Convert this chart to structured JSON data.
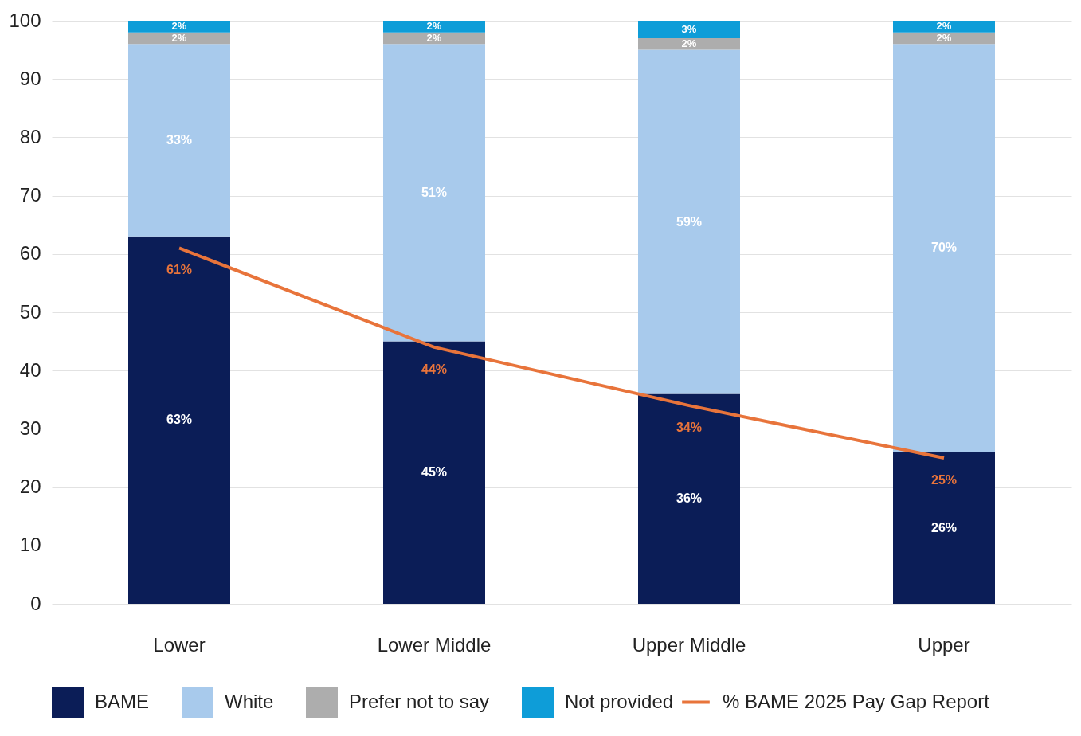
{
  "chart_data": {
    "type": "bar",
    "stacked": true,
    "categories": [
      "Lower",
      "Lower Middle",
      "Upper Middle",
      "Upper"
    ],
    "ylim": [
      0,
      100
    ],
    "yticks": [
      0,
      10,
      20,
      30,
      40,
      50,
      60,
      70,
      80,
      90,
      100
    ],
    "grid": "y",
    "legend": "bottom",
    "series": [
      {
        "name": "BAME",
        "color": "#0b1d57",
        "values": [
          63,
          45,
          36,
          26
        ],
        "value_labels": [
          "63%",
          "45%",
          "36%",
          "26%"
        ]
      },
      {
        "name": "White",
        "color": "#a8caec",
        "values": [
          33,
          51,
          59,
          70
        ],
        "value_labels": [
          "33%",
          "51%",
          "59%",
          "70%"
        ]
      },
      {
        "name": "Prefer not to say",
        "color": "#adadad",
        "values": [
          2,
          2,
          2,
          2
        ],
        "value_labels": [
          "2%",
          "2%",
          "2%",
          "2%"
        ]
      },
      {
        "name": "Not provided",
        "color": "#0e9dd8",
        "values": [
          2,
          2,
          3,
          2
        ],
        "value_labels": [
          "2%",
          "2%",
          "3%",
          "2%"
        ]
      },
      {
        "name": "% BAME 2025 Pay Gap Report",
        "type": "line",
        "color": "#e8743b",
        "values": [
          61,
          44,
          34,
          25
        ],
        "value_labels": [
          "61%",
          "44%",
          "34%",
          "25%"
        ]
      }
    ]
  }
}
